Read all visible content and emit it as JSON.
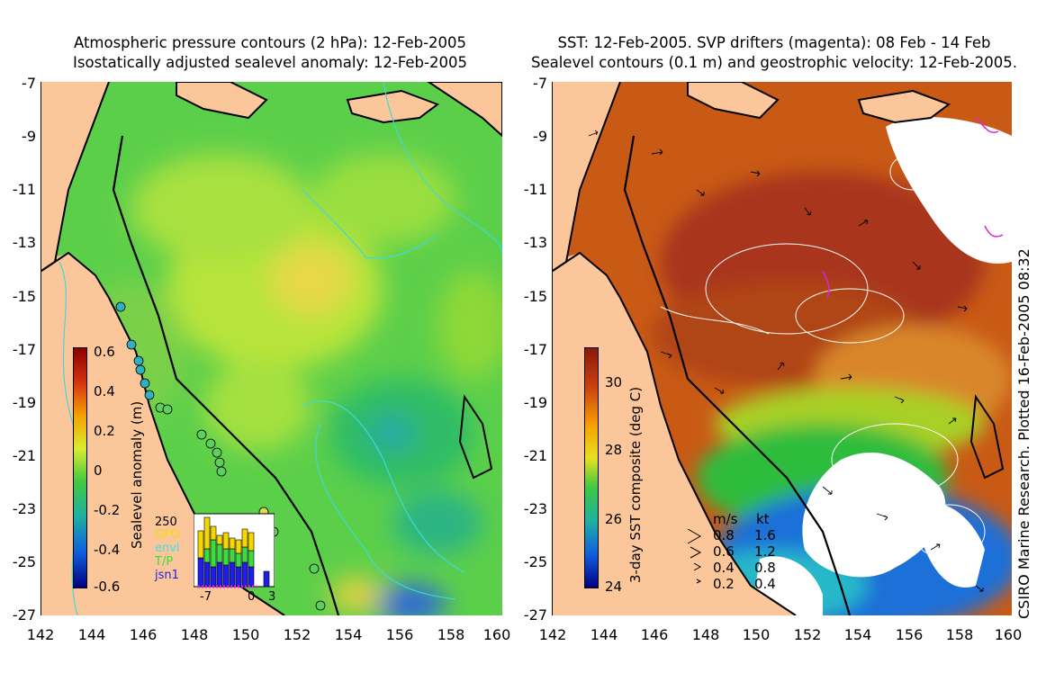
{
  "left_panel": {
    "title_line1": "Atmospheric pressure contours (2 hPa): 12-Feb-2005",
    "title_line2": "Isostatically adjusted sealevel anomaly: 12-Feb-2005",
    "colorbar_label": "Sealevel anomaly (m)",
    "colorbar_ticks": [
      "0.6",
      "0.4",
      "0.2",
      "0",
      "-0.2",
      "-0.4",
      "-0.6"
    ],
    "inset": {
      "ytick": "250",
      "xticks": [
        "-7",
        "0",
        "3"
      ],
      "legend": [
        {
          "label": "GFO",
          "color": "#f5d800"
        },
        {
          "label": "envi",
          "color": "#40e0e0"
        },
        {
          "label": "T/P",
          "color": "#3cdc3c"
        },
        {
          "label": "jsn1",
          "color": "#1e1ee6"
        }
      ]
    }
  },
  "right_panel": {
    "title_line1": "SST: 12-Feb-2005. SVP drifters (magenta): 08 Feb - 14 Feb",
    "title_line2": "Sealevel contours (0.1 m) and geostrophic velocity: 12-Feb-2005.",
    "colorbar_label": "3-day SST composite (deg C)",
    "colorbar_ticks": [
      "30",
      "28",
      "26",
      "24"
    ],
    "velocity_legend": {
      "header": [
        "m/s",
        "kt"
      ],
      "rows": [
        [
          "0.8",
          "1.6"
        ],
        [
          "0.6",
          "1.2"
        ],
        [
          "0.4",
          "0.8"
        ],
        [
          "0.2",
          "0.4"
        ]
      ]
    }
  },
  "y_ticks": [
    "-7",
    "-9",
    "-11",
    "-13",
    "-15",
    "-17",
    "-19",
    "-21",
    "-23",
    "-25",
    "-27"
  ],
  "x_ticks": [
    "142",
    "144",
    "146",
    "148",
    "150",
    "152",
    "154",
    "156",
    "158",
    "160"
  ],
  "credit": "CSIRO Marine Research. Plotted 16-Feb-2005 08:32",
  "colors": {
    "land": "#fbc79a",
    "coast": "#000000",
    "pressure_contour": "#40d8d8",
    "sst_contour": "#ffffff",
    "drifter": "#e020e0"
  }
}
